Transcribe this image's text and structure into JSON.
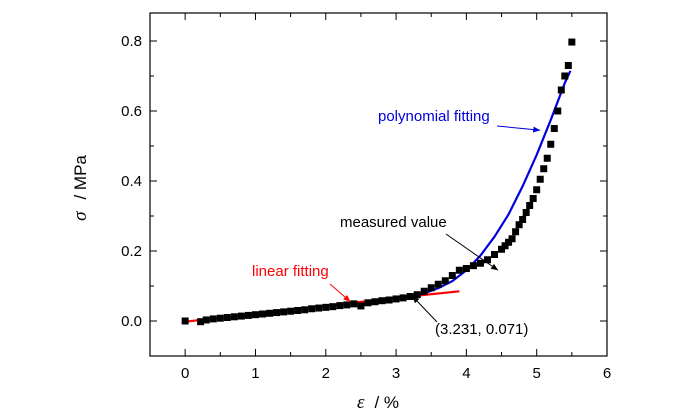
{
  "chart_data": {
    "type": "scatter",
    "xlabel": {
      "symbol": "ε",
      "unit": "/ %"
    },
    "ylabel": {
      "symbol": "σ",
      "unit": "/ MPa"
    },
    "xlim": [
      -0.5,
      6
    ],
    "ylim": [
      -0.1,
      0.88
    ],
    "xticks": [
      "0",
      "1",
      "2",
      "3",
      "4",
      "5",
      "6"
    ],
    "yticks": [
      "0.0",
      "0.2",
      "0.4",
      "0.6",
      "0.8"
    ],
    "xtick_values": [
      0,
      1,
      2,
      3,
      4,
      5,
      6
    ],
    "ytick_values": [
      0,
      0.2,
      0.4,
      0.6,
      0.8
    ],
    "grid": false,
    "series": [
      {
        "name": "measured value",
        "kind": "markers",
        "color": "#000000",
        "points": [
          [
            0.0,
            0.0
          ],
          [
            0.22,
            -0.002
          ],
          [
            0.3,
            0.003
          ],
          [
            0.4,
            0.006
          ],
          [
            0.5,
            0.008
          ],
          [
            0.6,
            0.01
          ],
          [
            0.7,
            0.012
          ],
          [
            0.8,
            0.014
          ],
          [
            0.9,
            0.016
          ],
          [
            1.0,
            0.018
          ],
          [
            1.1,
            0.02
          ],
          [
            1.2,
            0.022
          ],
          [
            1.3,
            0.024
          ],
          [
            1.4,
            0.026
          ],
          [
            1.5,
            0.028
          ],
          [
            1.6,
            0.03
          ],
          [
            1.7,
            0.032
          ],
          [
            1.8,
            0.035
          ],
          [
            1.9,
            0.037
          ],
          [
            2.0,
            0.039
          ],
          [
            2.1,
            0.041
          ],
          [
            2.2,
            0.044
          ],
          [
            2.3,
            0.046
          ],
          [
            2.4,
            0.049
          ],
          [
            2.5,
            0.043
          ],
          [
            2.6,
            0.052
          ],
          [
            2.7,
            0.055
          ],
          [
            2.8,
            0.058
          ],
          [
            2.9,
            0.06
          ],
          [
            3.0,
            0.063
          ],
          [
            3.1,
            0.066
          ],
          [
            3.2,
            0.07
          ],
          [
            3.3,
            0.075
          ],
          [
            3.4,
            0.085
          ],
          [
            3.5,
            0.095
          ],
          [
            3.6,
            0.105
          ],
          [
            3.7,
            0.115
          ],
          [
            3.8,
            0.13
          ],
          [
            3.9,
            0.145
          ],
          [
            4.0,
            0.15
          ],
          [
            4.1,
            0.158
          ],
          [
            4.2,
            0.165
          ],
          [
            4.3,
            0.175
          ],
          [
            4.4,
            0.19
          ],
          [
            4.5,
            0.205
          ],
          [
            4.55,
            0.215
          ],
          [
            4.6,
            0.225
          ],
          [
            4.65,
            0.235
          ],
          [
            4.7,
            0.255
          ],
          [
            4.75,
            0.275
          ],
          [
            4.8,
            0.29
          ],
          [
            4.85,
            0.31
          ],
          [
            4.9,
            0.33
          ],
          [
            4.95,
            0.35
          ],
          [
            5.0,
            0.375
          ],
          [
            5.05,
            0.405
          ],
          [
            5.1,
            0.435
          ],
          [
            5.15,
            0.465
          ],
          [
            5.2,
            0.505
          ],
          [
            5.25,
            0.55
          ],
          [
            5.3,
            0.6
          ],
          [
            5.35,
            0.66
          ],
          [
            5.4,
            0.7
          ],
          [
            5.45,
            0.73
          ],
          [
            5.5,
            0.797
          ]
        ]
      },
      {
        "name": "linear fitting",
        "kind": "line",
        "color": "#ff0000",
        "points": [
          [
            0.0,
            -0.002
          ],
          [
            3.231,
            0.071
          ],
          [
            3.9,
            0.085
          ]
        ]
      },
      {
        "name": "polynomial fitting",
        "kind": "curve",
        "color": "#0000dd",
        "points": [
          [
            3.0,
            0.067
          ],
          [
            3.231,
            0.071
          ],
          [
            3.4,
            0.079
          ],
          [
            3.6,
            0.094
          ],
          [
            3.8,
            0.114
          ],
          [
            4.0,
            0.145
          ],
          [
            4.2,
            0.187
          ],
          [
            4.4,
            0.241
          ],
          [
            4.6,
            0.305
          ],
          [
            4.8,
            0.385
          ],
          [
            5.0,
            0.475
          ],
          [
            5.2,
            0.575
          ],
          [
            5.4,
            0.68
          ],
          [
            5.48,
            0.715
          ]
        ]
      }
    ],
    "annotations": [
      {
        "text": "polynomial fitting",
        "color": "#0000dd",
        "target": [
          5.05,
          0.545
        ]
      },
      {
        "text": "measured value",
        "color": "#000000",
        "target": [
          4.45,
          0.145
        ]
      },
      {
        "text": "linear fitting",
        "color": "#ff0000",
        "target": [
          2.35,
          0.055
        ]
      },
      {
        "text": "(3.231, 0.071)",
        "color": "#000000",
        "target": [
          3.231,
          0.071
        ]
      }
    ]
  }
}
